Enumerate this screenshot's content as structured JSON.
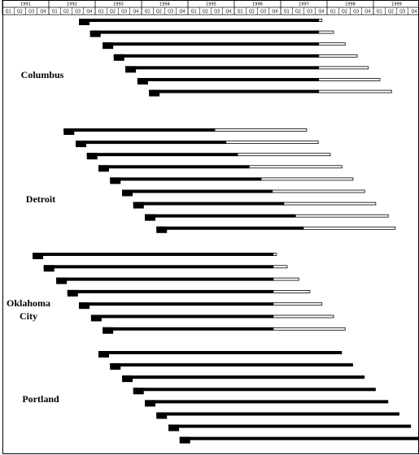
{
  "chart_data": {
    "type": "gantt",
    "xlim": [
      1991,
      2000
    ],
    "xticks": [
      1991,
      1992,
      1993,
      1994,
      1995,
      1996,
      1997,
      1998,
      1999
    ],
    "quarters": [
      "Q1",
      "Q2",
      "Q3",
      "Q4"
    ],
    "groups": [
      {
        "name": "Columbus",
        "rows": [
          {
            "start": 1992.65,
            "solid_end": 1997.82,
            "end": 1997.89
          },
          {
            "start": 1992.89,
            "solid_end": 1997.82,
            "end": 1998.14
          },
          {
            "start": 1993.16,
            "solid_end": 1997.82,
            "end": 1998.39
          },
          {
            "start": 1993.4,
            "solid_end": 1997.82,
            "end": 1998.65
          },
          {
            "start": 1993.65,
            "solid_end": 1997.82,
            "end": 1998.89
          },
          {
            "start": 1993.91,
            "solid_end": 1997.82,
            "end": 1999.14
          },
          {
            "start": 1994.16,
            "solid_end": 1997.82,
            "end": 1999.39
          }
        ]
      },
      {
        "name": "Detroit",
        "rows": [
          {
            "start": 1992.32,
            "solid_end": 1995.58,
            "end": 1997.56
          },
          {
            "start": 1992.58,
            "solid_end": 1995.82,
            "end": 1997.81
          },
          {
            "start": 1992.82,
            "solid_end": 1996.07,
            "end": 1998.07
          },
          {
            "start": 1993.07,
            "solid_end": 1996.32,
            "end": 1998.32
          },
          {
            "start": 1993.32,
            "solid_end": 1996.58,
            "end": 1998.56
          },
          {
            "start": 1993.58,
            "solid_end": 1996.82,
            "end": 1998.81
          },
          {
            "start": 1993.82,
            "solid_end": 1997.07,
            "end": 1999.05
          },
          {
            "start": 1994.07,
            "solid_end": 1997.32,
            "end": 1999.32
          },
          {
            "start": 1994.32,
            "solid_end": 1997.49,
            "end": 1999.47
          }
        ]
      },
      {
        "name": "Oklahoma City",
        "rows": [
          {
            "start": 1991.65,
            "solid_end": 1996.84,
            "end": 1996.91
          },
          {
            "start": 1991.89,
            "solid_end": 1996.84,
            "end": 1997.14
          },
          {
            "start": 1992.16,
            "solid_end": 1996.84,
            "end": 1997.39
          },
          {
            "start": 1992.4,
            "solid_end": 1996.84,
            "end": 1997.63
          },
          {
            "start": 1992.65,
            "solid_end": 1996.84,
            "end": 1997.89
          },
          {
            "start": 1992.91,
            "solid_end": 1996.84,
            "end": 1998.14
          },
          {
            "start": 1993.16,
            "solid_end": 1996.84,
            "end": 1998.39
          }
        ]
      },
      {
        "name": "Portland",
        "rows": [
          {
            "start": 1993.07,
            "solid_end": 1998.32
          },
          {
            "start": 1993.32,
            "solid_end": 1998.56
          },
          {
            "start": 1993.58,
            "solid_end": 1998.81
          },
          {
            "start": 1993.82,
            "solid_end": 1999.05
          },
          {
            "start": 1994.07,
            "solid_end": 1999.32
          },
          {
            "start": 1994.32,
            "solid_end": 1999.56
          },
          {
            "start": 1994.58,
            "solid_end": 1999.81
          },
          {
            "start": 1994.82,
            "solid_end": 1999.98
          }
        ]
      }
    ]
  }
}
